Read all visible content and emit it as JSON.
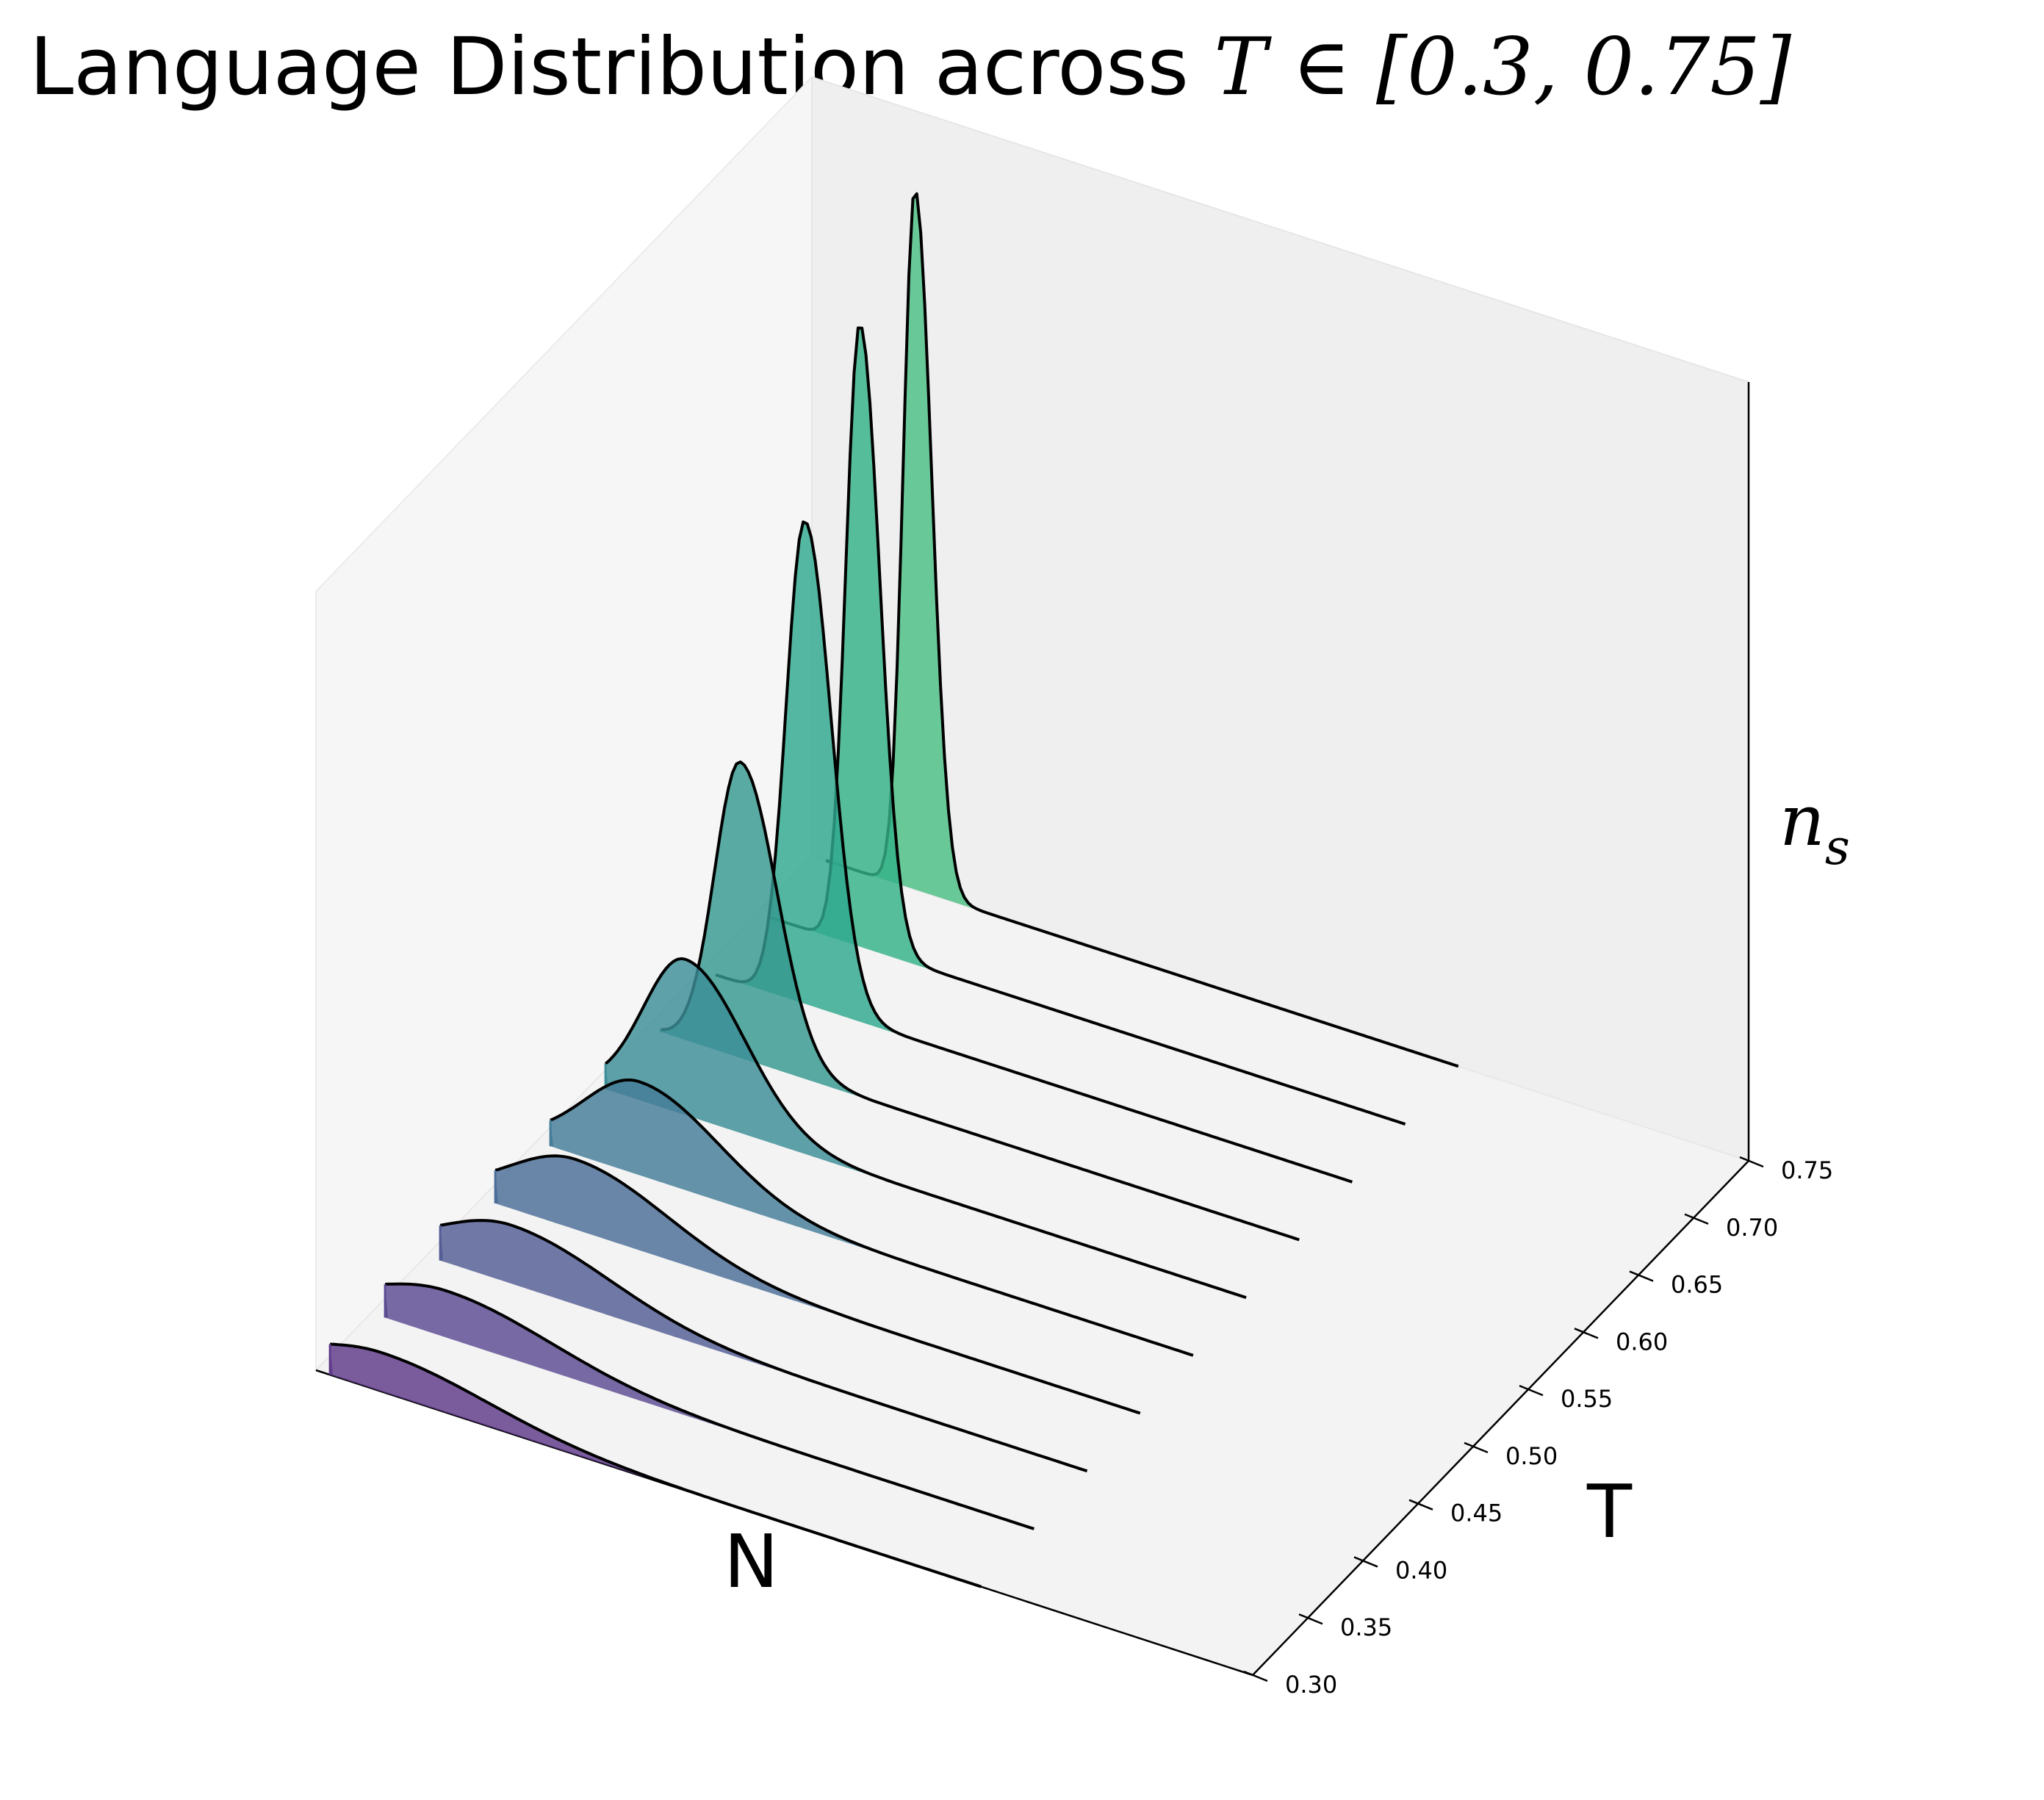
{
  "chart_data": {
    "type": "area",
    "title": "Language Distribution across ",
    "title_math": "T ∈ [0.3, 0.75]",
    "xlabel": "N",
    "ylabel": "T",
    "zlabel": "n",
    "zlabel_sub": "s",
    "y_ticks": [
      "0.30",
      "0.35",
      "0.40",
      "0.45",
      "0.50",
      "0.55",
      "0.60",
      "0.65",
      "0.70",
      "0.75"
    ],
    "colormap": "viridis",
    "series": [
      {
        "T": 0.3,
        "color": "#5f3b8a",
        "peak_position": 0.07,
        "peak_height": 0.05,
        "width": 0.16
      },
      {
        "T": 0.35,
        "color": "#5b4b91",
        "peak_position": 0.08,
        "peak_height": 0.06,
        "width": 0.16
      },
      {
        "T": 0.4,
        "color": "#535d95",
        "peak_position": 0.09,
        "peak_height": 0.075,
        "width": 0.15
      },
      {
        "T": 0.45,
        "color": "#4b6e97",
        "peak_position": 0.1,
        "peak_height": 0.09,
        "width": 0.14
      },
      {
        "T": 0.5,
        "color": "#447d98",
        "peak_position": 0.11,
        "peak_height": 0.12,
        "width": 0.12
      },
      {
        "T": 0.55,
        "color": "#3c8d97",
        "peak_position": 0.1,
        "peak_height": 0.2,
        "width": 0.09
      },
      {
        "T": 0.6,
        "color": "#34998f",
        "peak_position": 0.1,
        "peak_height": 0.38,
        "width": 0.055
      },
      {
        "T": 0.65,
        "color": "#2fa88d",
        "peak_position": 0.11,
        "peak_height": 0.62,
        "width": 0.04
      },
      {
        "T": 0.7,
        "color": "#34b289",
        "peak_position": 0.11,
        "peak_height": 0.8,
        "width": 0.03
      },
      {
        "T": 0.75,
        "color": "#4cbf84",
        "peak_position": 0.11,
        "peak_height": 0.9,
        "width": 0.025
      }
    ],
    "grid": false,
    "projection": "3d"
  }
}
